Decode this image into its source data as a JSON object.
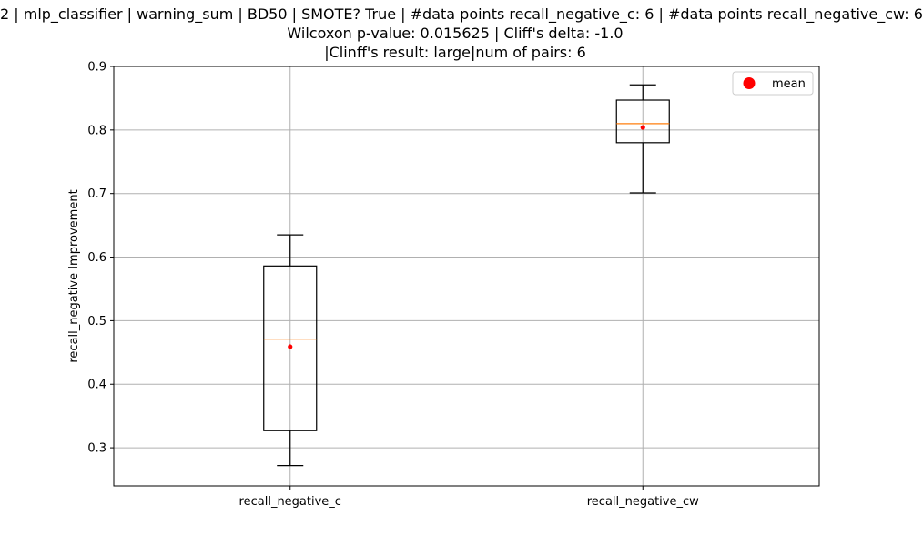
{
  "title_lines": [
    "2 | mlp_classifier | warning_sum | BD50 | SMOTE? True | #data points recall_negative_c: 6 | #data points recall_negative_cw: 6",
    "Wilcoxon p-value: 0.015625 | Cliff's delta: -1.0",
    "|Clinff's result: large|num of pairs: 6"
  ],
  "chart_data": {
    "type": "box",
    "title": "2 | mlp_classifier | warning_sum | BD50 | SMOTE? True | #data points recall_negative_c: 6 | #data points recall_negative_cw: 6 / Wilcoxon p-value: 0.015625 | Cliff's delta: -1.0 / |Clinff's result: large|num of pairs: 6",
    "xlabel": "",
    "ylabel": "recall_negative Improvement",
    "ylim": [
      0.24,
      0.9
    ],
    "yticks": [
      0.3,
      0.4,
      0.5,
      0.6,
      0.7,
      0.8,
      0.9
    ],
    "grid": true,
    "legend": {
      "placement": "top-right",
      "entries": [
        "mean"
      ]
    },
    "categories": [
      "recall_negative_c",
      "recall_negative_cw"
    ],
    "boxes": [
      {
        "name": "recall_negative_c",
        "whisker_low": 0.272,
        "q1": 0.327,
        "median": 0.471,
        "q3": 0.586,
        "whisker_high": 0.635,
        "mean": 0.459
      },
      {
        "name": "recall_negative_cw",
        "whisker_low": 0.701,
        "q1": 0.78,
        "median": 0.81,
        "q3": 0.847,
        "whisker_high": 0.871,
        "mean": 0.804
      }
    ]
  },
  "colors": {
    "box": "#000000",
    "median": "#ff7f0e",
    "mean": "#ff0000",
    "grid": "#b0b0b0",
    "legend_border": "#cccccc"
  }
}
